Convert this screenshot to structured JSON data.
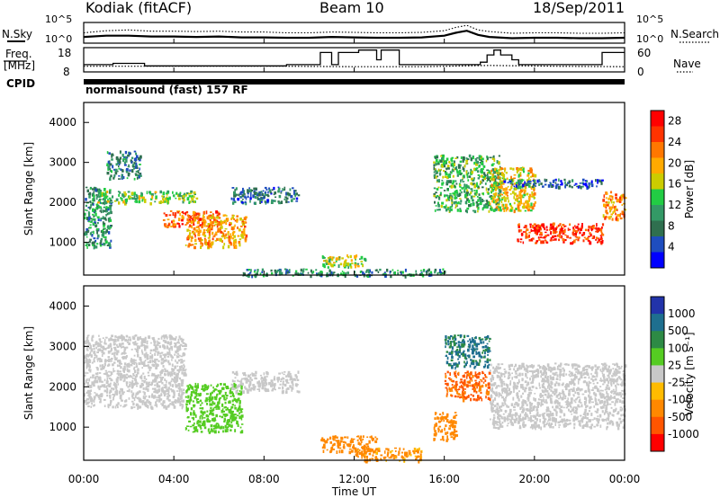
{
  "header": {
    "radar": "Kodiak (fitACF)",
    "beam": "Beam 10",
    "date": "18/Sep/2011"
  },
  "left_labels": {
    "nsky": "N.Sky",
    "freq_line1": "Freq.",
    "freq_line2": "[MHz]",
    "cpid": "CPID"
  },
  "right_labels": {
    "nsearch": "N.Search",
    "nave": "Nave"
  },
  "program_label": "normalsound (fast) 157 RF",
  "noise_panel": {
    "left_ticks": [
      "10^5",
      "10^0"
    ],
    "right_ticks": [
      "10^5",
      "10^0"
    ]
  },
  "freq_panel": {
    "left_ticks": [
      "18",
      "8"
    ],
    "right_ticks": [
      "60",
      "0"
    ]
  },
  "colors": {
    "power": [
      "#0000ff",
      "#1e4dbf",
      "#2f6f4f",
      "#339966",
      "#22cc44",
      "#cccc00",
      "#ffaa00",
      "#ff7700",
      "#ff3300",
      "#ff0000"
    ],
    "velocity": [
      "#2233aa",
      "#1e6f8f",
      "#2d8a45",
      "#55cc22",
      "#c8c8c8",
      "#ffbb00",
      "#ff8800",
      "#ff5500",
      "#ff0000"
    ]
  },
  "chart_data": [
    {
      "type": "line",
      "title": "Kodiak (fitACF) Beam 10 18/Sep/2011",
      "xlabel": "",
      "ylabel": "N.Sky / N.Search",
      "xlim": [
        0,
        24
      ],
      "y_scale": "log",
      "ylim": [
        "10^0",
        "10^5"
      ],
      "series": [
        {
          "name": "N.Sky",
          "x": [
            0,
            1,
            2,
            3,
            4,
            5,
            6,
            7,
            8,
            9,
            10,
            11,
            12,
            13,
            14,
            15,
            16,
            16.5,
            17,
            17.5,
            18,
            19,
            20,
            21,
            22,
            23,
            24
          ],
          "values": [
            1.5,
            1.8,
            1.8,
            1.6,
            1.6,
            1.5,
            1.6,
            1.4,
            1.4,
            1.3,
            1.3,
            1.5,
            1.4,
            1.3,
            1.3,
            1.4,
            1.8,
            2.5,
            3.0,
            2.0,
            1.5,
            1.2,
            1.3,
            1.3,
            1.2,
            1.2,
            1.3
          ]
        },
        {
          "name": "N.Search",
          "x": [
            0,
            1,
            2,
            3,
            4,
            5,
            6,
            7,
            8,
            9,
            10,
            11,
            12,
            13,
            14,
            15,
            16,
            16.5,
            17,
            17.5,
            18,
            19,
            20,
            21,
            22,
            23,
            24
          ],
          "values": [
            2.5,
            3.0,
            3.2,
            2.9,
            2.9,
            2.8,
            2.9,
            2.7,
            2.7,
            2.5,
            2.5,
            2.7,
            2.6,
            2.5,
            2.5,
            2.6,
            3.0,
            3.8,
            4.3,
            3.2,
            2.8,
            2.4,
            2.5,
            2.5,
            2.4,
            2.4,
            2.5
          ]
        }
      ]
    },
    {
      "type": "line",
      "title": "",
      "xlabel": "",
      "ylabel": "Freq. [MHz]",
      "xlim": [
        0,
        24
      ],
      "ylim": [
        8,
        18
      ],
      "y2label": "Nave",
      "y2lim": [
        0,
        60
      ],
      "series": [
        {
          "name": "Freq.",
          "x": [
            0,
            1.3,
            1.3,
            2.7,
            2.7,
            9.0,
            9.0,
            10.5,
            10.5,
            11.0,
            11.0,
            11.3,
            11.3,
            12.2,
            12.2,
            13.0,
            13.0,
            13.2,
            13.2,
            14.0,
            14.0,
            17.6,
            17.6,
            17.9,
            17.9,
            18.2,
            18.2,
            18.5,
            18.5,
            19.0,
            19.0,
            19.3,
            19.3,
            23.0,
            23.0,
            24
          ],
          "values": [
            11,
            11,
            11.5,
            11.5,
            10.5,
            10.5,
            11,
            11,
            16,
            16,
            11,
            11,
            16,
            16,
            17,
            17,
            13,
            13,
            17,
            17,
            11,
            11,
            12,
            12,
            15,
            15,
            17,
            17,
            15,
            15,
            13,
            13,
            11,
            11,
            16,
            16
          ]
        },
        {
          "name": "Nave",
          "x": [
            0,
            3,
            6,
            9,
            12,
            15,
            18,
            21,
            24
          ],
          "values": [
            14,
            14,
            14,
            14,
            13,
            13,
            16,
            14,
            13
          ]
        }
      ]
    },
    {
      "type": "heatmap",
      "title": "normalsound (fast) 157 RF",
      "xlabel": "",
      "ylabel": "Slant Range [km]",
      "xlim": [
        0,
        24
      ],
      "ylim": [
        180,
        4500
      ],
      "x_ticks": [
        "00:00",
        "04:00",
        "08:00",
        "12:00",
        "16:00",
        "20:00",
        "00:00"
      ],
      "y_ticks": [
        1000,
        2000,
        3000,
        4000
      ],
      "colorbar": {
        "label": "Power [dB]",
        "ticks": [
          4,
          8,
          12,
          16,
          20,
          24,
          28
        ],
        "range": [
          0,
          30
        ]
      },
      "regions": [
        {
          "x": [
            0.0,
            1.2
          ],
          "y": [
            900,
            2400
          ],
          "value": 10
        },
        {
          "x": [
            1.0,
            2.5
          ],
          "y": [
            2600,
            3300
          ],
          "value": 8
        },
        {
          "x": [
            0.5,
            5.0
          ],
          "y": [
            2000,
            2300
          ],
          "value": 14
        },
        {
          "x": [
            3.5,
            6.0
          ],
          "y": [
            1400,
            1800
          ],
          "value": 24
        },
        {
          "x": [
            4.5,
            7.2
          ],
          "y": [
            900,
            1700
          ],
          "value": 20
        },
        {
          "x": [
            6.5,
            9.5
          ],
          "y": [
            2000,
            2400
          ],
          "value": 7
        },
        {
          "x": [
            10.5,
            12.5
          ],
          "y": [
            400,
            700
          ],
          "value": 15
        },
        {
          "x": [
            7.0,
            16.0
          ],
          "y": [
            180,
            350
          ],
          "value": 9
        },
        {
          "x": [
            15.5,
            18.5
          ],
          "y": [
            1800,
            3200
          ],
          "value": 12
        },
        {
          "x": [
            18.0,
            20.0
          ],
          "y": [
            1800,
            2900
          ],
          "value": 18
        },
        {
          "x": [
            19.2,
            23.0
          ],
          "y": [
            1000,
            1500
          ],
          "value": 26
        },
        {
          "x": [
            23.0,
            24.0
          ],
          "y": [
            1600,
            2300
          ],
          "value": 22
        },
        {
          "x": [
            18.5,
            23.0
          ],
          "y": [
            2400,
            2600
          ],
          "value": 6
        }
      ]
    },
    {
      "type": "heatmap",
      "title": "",
      "xlabel": "Time UT",
      "ylabel": "Slant Range [km]",
      "xlim": [
        0,
        24
      ],
      "ylim": [
        180,
        4500
      ],
      "x_ticks": [
        "00:00",
        "04:00",
        "08:00",
        "12:00",
        "16:00",
        "20:00",
        "00:00"
      ],
      "y_ticks": [
        1000,
        2000,
        3000,
        4000
      ],
      "colorbar": {
        "label": "Velocity [m s⁻¹]",
        "ticks": [
          1000,
          500,
          100,
          25,
          -25,
          -100,
          -500,
          -1000
        ]
      },
      "regions": [
        {
          "x": [
            0.0,
            4.5
          ],
          "y": [
            1500,
            3300
          ],
          "value": 0
        },
        {
          "x": [
            4.5,
            7.0
          ],
          "y": [
            900,
            2100
          ],
          "value": 60
        },
        {
          "x": [
            6.5,
            9.5
          ],
          "y": [
            1900,
            2400
          ],
          "value": 0
        },
        {
          "x": [
            10.5,
            13.0
          ],
          "y": [
            400,
            800
          ],
          "value": -200
        },
        {
          "x": [
            12.0,
            15.0
          ],
          "y": [
            180,
            500
          ],
          "value": -150
        },
        {
          "x": [
            15.5,
            16.5
          ],
          "y": [
            700,
            1400
          ],
          "value": -300
        },
        {
          "x": [
            16.0,
            18.0
          ],
          "y": [
            2500,
            3300
          ],
          "value": 600
        },
        {
          "x": [
            16.0,
            18.0
          ],
          "y": [
            1700,
            2400
          ],
          "value": -600
        },
        {
          "x": [
            18.0,
            24.0
          ],
          "y": [
            1000,
            2600
          ],
          "value": 0
        }
      ]
    }
  ]
}
